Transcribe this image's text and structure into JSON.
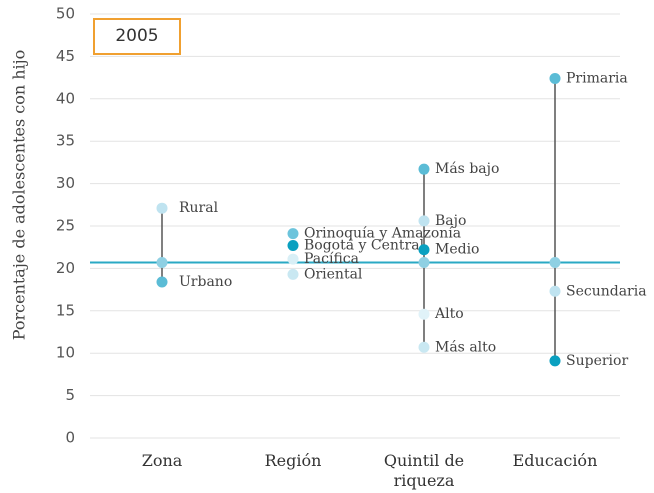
{
  "chart_data": {
    "type": "dot",
    "title": "2005",
    "y_label": "Porcentaje de adolescentes con hijo",
    "categories": [
      "Zona",
      "Región",
      "Quintil de riqueza",
      "Educación"
    ],
    "ylim": [
      0,
      50
    ],
    "yticks": [
      0,
      5,
      10,
      15,
      20,
      25,
      30,
      35,
      40,
      45,
      50
    ],
    "grid": true,
    "reference": 20.7,
    "reference_color": "#2aa9c4",
    "reference_dot_color": "#8fd0e3",
    "connector_color": "#555555",
    "groups": [
      {
        "connector": true,
        "points": [
          {
            "label": "Rural",
            "value": 27.1,
            "color": "#bfe3f0"
          },
          {
            "label": "Urbano",
            "value": 18.4,
            "color": "#5bbcd6"
          }
        ]
      },
      {
        "connector": false,
        "points": [
          {
            "label": "Orinoquía y Amazonía",
            "value": 24.1,
            "color": "#6cc4dc"
          },
          {
            "label": "Bogotá y Central",
            "value": 22.7,
            "color": "#0aa0c0"
          },
          {
            "label": "Pacífica",
            "value": 21.1,
            "color": "#d8eff6"
          },
          {
            "label": "Oriental",
            "value": 19.3,
            "color": "#c9e8f2"
          }
        ]
      },
      {
        "connector": true,
        "points": [
          {
            "label": "Más bajo",
            "value": 31.7,
            "color": "#5bbcd6"
          },
          {
            "label": "Bajo",
            "value": 25.6,
            "color": "#bfe3f0"
          },
          {
            "label": "Medio",
            "value": 22.2,
            "color": "#0aa0c0"
          },
          {
            "label": "Alto",
            "value": 14.6,
            "color": "#e0f2f8"
          },
          {
            "label": "Más alto",
            "value": 10.7,
            "color": "#c9e8f2"
          }
        ]
      },
      {
        "connector": true,
        "points": [
          {
            "label": "Primaria",
            "value": 42.4,
            "color": "#5bbcd6"
          },
          {
            "label": "Secundaria",
            "value": 17.3,
            "color": "#bfe3f0"
          },
          {
            "label": "Superior",
            "value": 9.1,
            "color": "#0aa0c0"
          }
        ]
      }
    ]
  }
}
